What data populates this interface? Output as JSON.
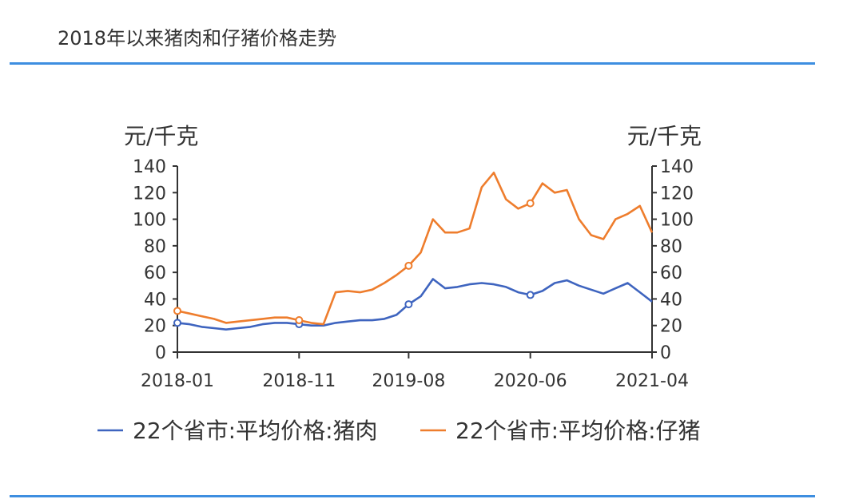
{
  "header": {
    "title": "2018年以来猪肉和仔猪价格走势"
  },
  "chart_data": {
    "type": "line",
    "title": "2018年以来猪肉和仔猪价格走势",
    "ylabel_left": "元/千克",
    "ylabel_right": "元/千克",
    "ylim": [
      0,
      140
    ],
    "yticks": [
      "0",
      "20",
      "40",
      "60",
      "80",
      "100",
      "120",
      "140"
    ],
    "xlim": [
      "2018-01",
      "2021-04"
    ],
    "xticks": [
      "2018-01",
      "2018-11",
      "2019-08",
      "2020-06",
      "2021-04"
    ],
    "grid": false,
    "legend_position": "bottom",
    "x": [
      "2018-01",
      "2018-02",
      "2018-03",
      "2018-04",
      "2018-05",
      "2018-06",
      "2018-07",
      "2018-08",
      "2018-09",
      "2018-10",
      "2018-11",
      "2018-12",
      "2019-01",
      "2019-02",
      "2019-03",
      "2019-04",
      "2019-05",
      "2019-06",
      "2019-07",
      "2019-08",
      "2019-09",
      "2019-10",
      "2019-11",
      "2019-12",
      "2020-01",
      "2020-02",
      "2020-03",
      "2020-04",
      "2020-05",
      "2020-06",
      "2020-07",
      "2020-08",
      "2020-09",
      "2020-10",
      "2020-11",
      "2020-12",
      "2021-01",
      "2021-02",
      "2021-03",
      "2021-04"
    ],
    "series": [
      {
        "name": "22个省市:平均价格:猪肉",
        "color": "#3e64bf",
        "values": [
          22,
          21,
          19,
          18,
          17,
          18,
          19,
          21,
          22,
          22,
          21,
          20,
          20,
          22,
          23,
          24,
          24,
          25,
          28,
          36,
          42,
          55,
          48,
          49,
          51,
          52,
          51,
          49,
          45,
          43,
          46,
          52,
          54,
          50,
          47,
          44,
          48,
          52,
          45,
          38
        ]
      },
      {
        "name": "22个省市:平均价格:仔猪",
        "color": "#ee7d2d",
        "values": [
          31,
          29,
          27,
          25,
          22,
          23,
          24,
          25,
          26,
          26,
          24,
          22,
          21,
          45,
          46,
          45,
          47,
          52,
          58,
          65,
          75,
          100,
          90,
          90,
          93,
          124,
          135,
          115,
          108,
          112,
          127,
          120,
          122,
          100,
          88,
          85,
          100,
          104,
          110,
          90
        ]
      }
    ]
  }
}
